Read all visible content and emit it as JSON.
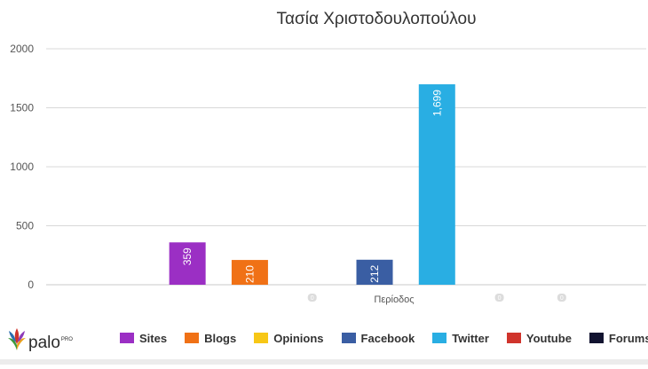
{
  "chart_data": {
    "type": "bar",
    "title": "Τασία Χριστοδουλοπούλου",
    "xlabel": "Περίοδος",
    "ylim": [
      0,
      2000
    ],
    "yticks": [
      0,
      500,
      1000,
      1500,
      2000
    ],
    "grid": true,
    "legend_position": "bottom",
    "series": [
      {
        "name": "Sites",
        "value": 359,
        "label": "359",
        "color": "#9b2fc4"
      },
      {
        "name": "Blogs",
        "value": 210,
        "label": "210",
        "color": "#f07116"
      },
      {
        "name": "Opinions",
        "value": 0,
        "label": "0",
        "color": "#f7c716"
      },
      {
        "name": "Facebook",
        "value": 212,
        "label": "212",
        "color": "#3a5ea3"
      },
      {
        "name": "Twitter",
        "value": 1699,
        "label": "1,699",
        "color": "#29aee3"
      },
      {
        "name": "Youtube",
        "value": 0,
        "label": "0",
        "color": "#d0342c"
      },
      {
        "name": "Forums",
        "value": 0,
        "label": "0",
        "color": "#121330"
      }
    ]
  },
  "logo": {
    "text": "palo",
    "sup": "PRO"
  }
}
